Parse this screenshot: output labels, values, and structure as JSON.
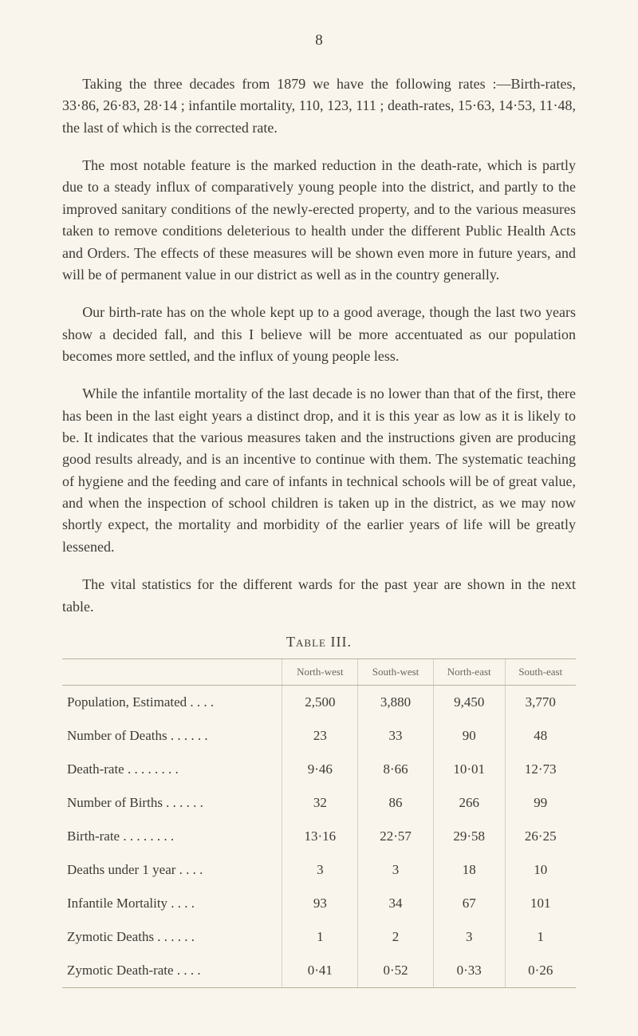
{
  "page_number": "8",
  "paragraphs": [
    "Taking the three decades from 1879 we have the following rates :—Birth-rates, 33·86, 26·83, 28·14 ; infantile mortality, 110, 123, 111 ; death-rates, 15·63, 14·53, 11·48, the last of which is the corrected rate.",
    "The most notable feature is the marked reduction in the death-rate, which is partly due to a steady influx of comparatively young people into the district, and partly to the improved sanitary conditions of the newly-erected property, and to the various measures taken to remove conditions deleterious to health under the different Public Health Acts and Orders. The effects of these measures will be shown even more in future years, and will be of permanent value in our district as well as in the country generally.",
    "Our birth-rate has on the whole kept up to a good average, though the last two years show a decided fall, and this I believe will be more accentuated as our population becomes more settled, and the influx of young people less.",
    "While the infantile mortality of the last decade is no lower than that of the first, there has been in the last eight years a distinct drop, and it is this year as low as it is likely to be. It indicates that the various measures taken and the instructions given are producing good results already, and is an incentive to continue with them. The systematic teaching of hygiene and the feeding and care of infants in technical schools will be of great value, and when the inspection of school children is taken up in the district, as we may now shortly expect, the mortality and morbidity of the earlier years of life will be greatly lessened.",
    "The vital statistics for the different wards for the past year are shown in the next table."
  ],
  "table": {
    "title": "Table III.",
    "columns": [
      "",
      "North-west",
      "South-west",
      "North-east",
      "South-east"
    ],
    "rows": [
      {
        "label": "Population, Estimated . .   . .",
        "cells": [
          "2,500",
          "3,880",
          "9,450",
          "3,770"
        ]
      },
      {
        "label": "Number of Deaths . .   . .   . .",
        "cells": [
          "23",
          "33",
          "90",
          "48"
        ]
      },
      {
        "label": "Death-rate     . .   . .   . .   . .",
        "cells": [
          "9·46",
          "8·66",
          "10·01",
          "12·73"
        ]
      },
      {
        "label": "Number of Births . .   . .   . .",
        "cells": [
          "32",
          "86",
          "266",
          "99"
        ]
      },
      {
        "label": "Birth-rate      . .   . .   . .   . .",
        "cells": [
          "13·16",
          "22·57",
          "29·58",
          "26·25"
        ]
      },
      {
        "label": "Deaths under 1 year   . .   . .",
        "cells": [
          "3",
          "3",
          "18",
          "10"
        ]
      },
      {
        "label": "Infantile Mortality     . .   . .",
        "cells": [
          "93",
          "34",
          "67",
          "101"
        ]
      },
      {
        "label": "Zymotic Deaths   . .   . .   . .",
        "cells": [
          "1",
          "2",
          "3",
          "1"
        ]
      },
      {
        "label": "Zymotic Death-rate    . .   . .",
        "cells": [
          "0·41",
          "0·52",
          "0·33",
          "0·26"
        ]
      }
    ]
  }
}
